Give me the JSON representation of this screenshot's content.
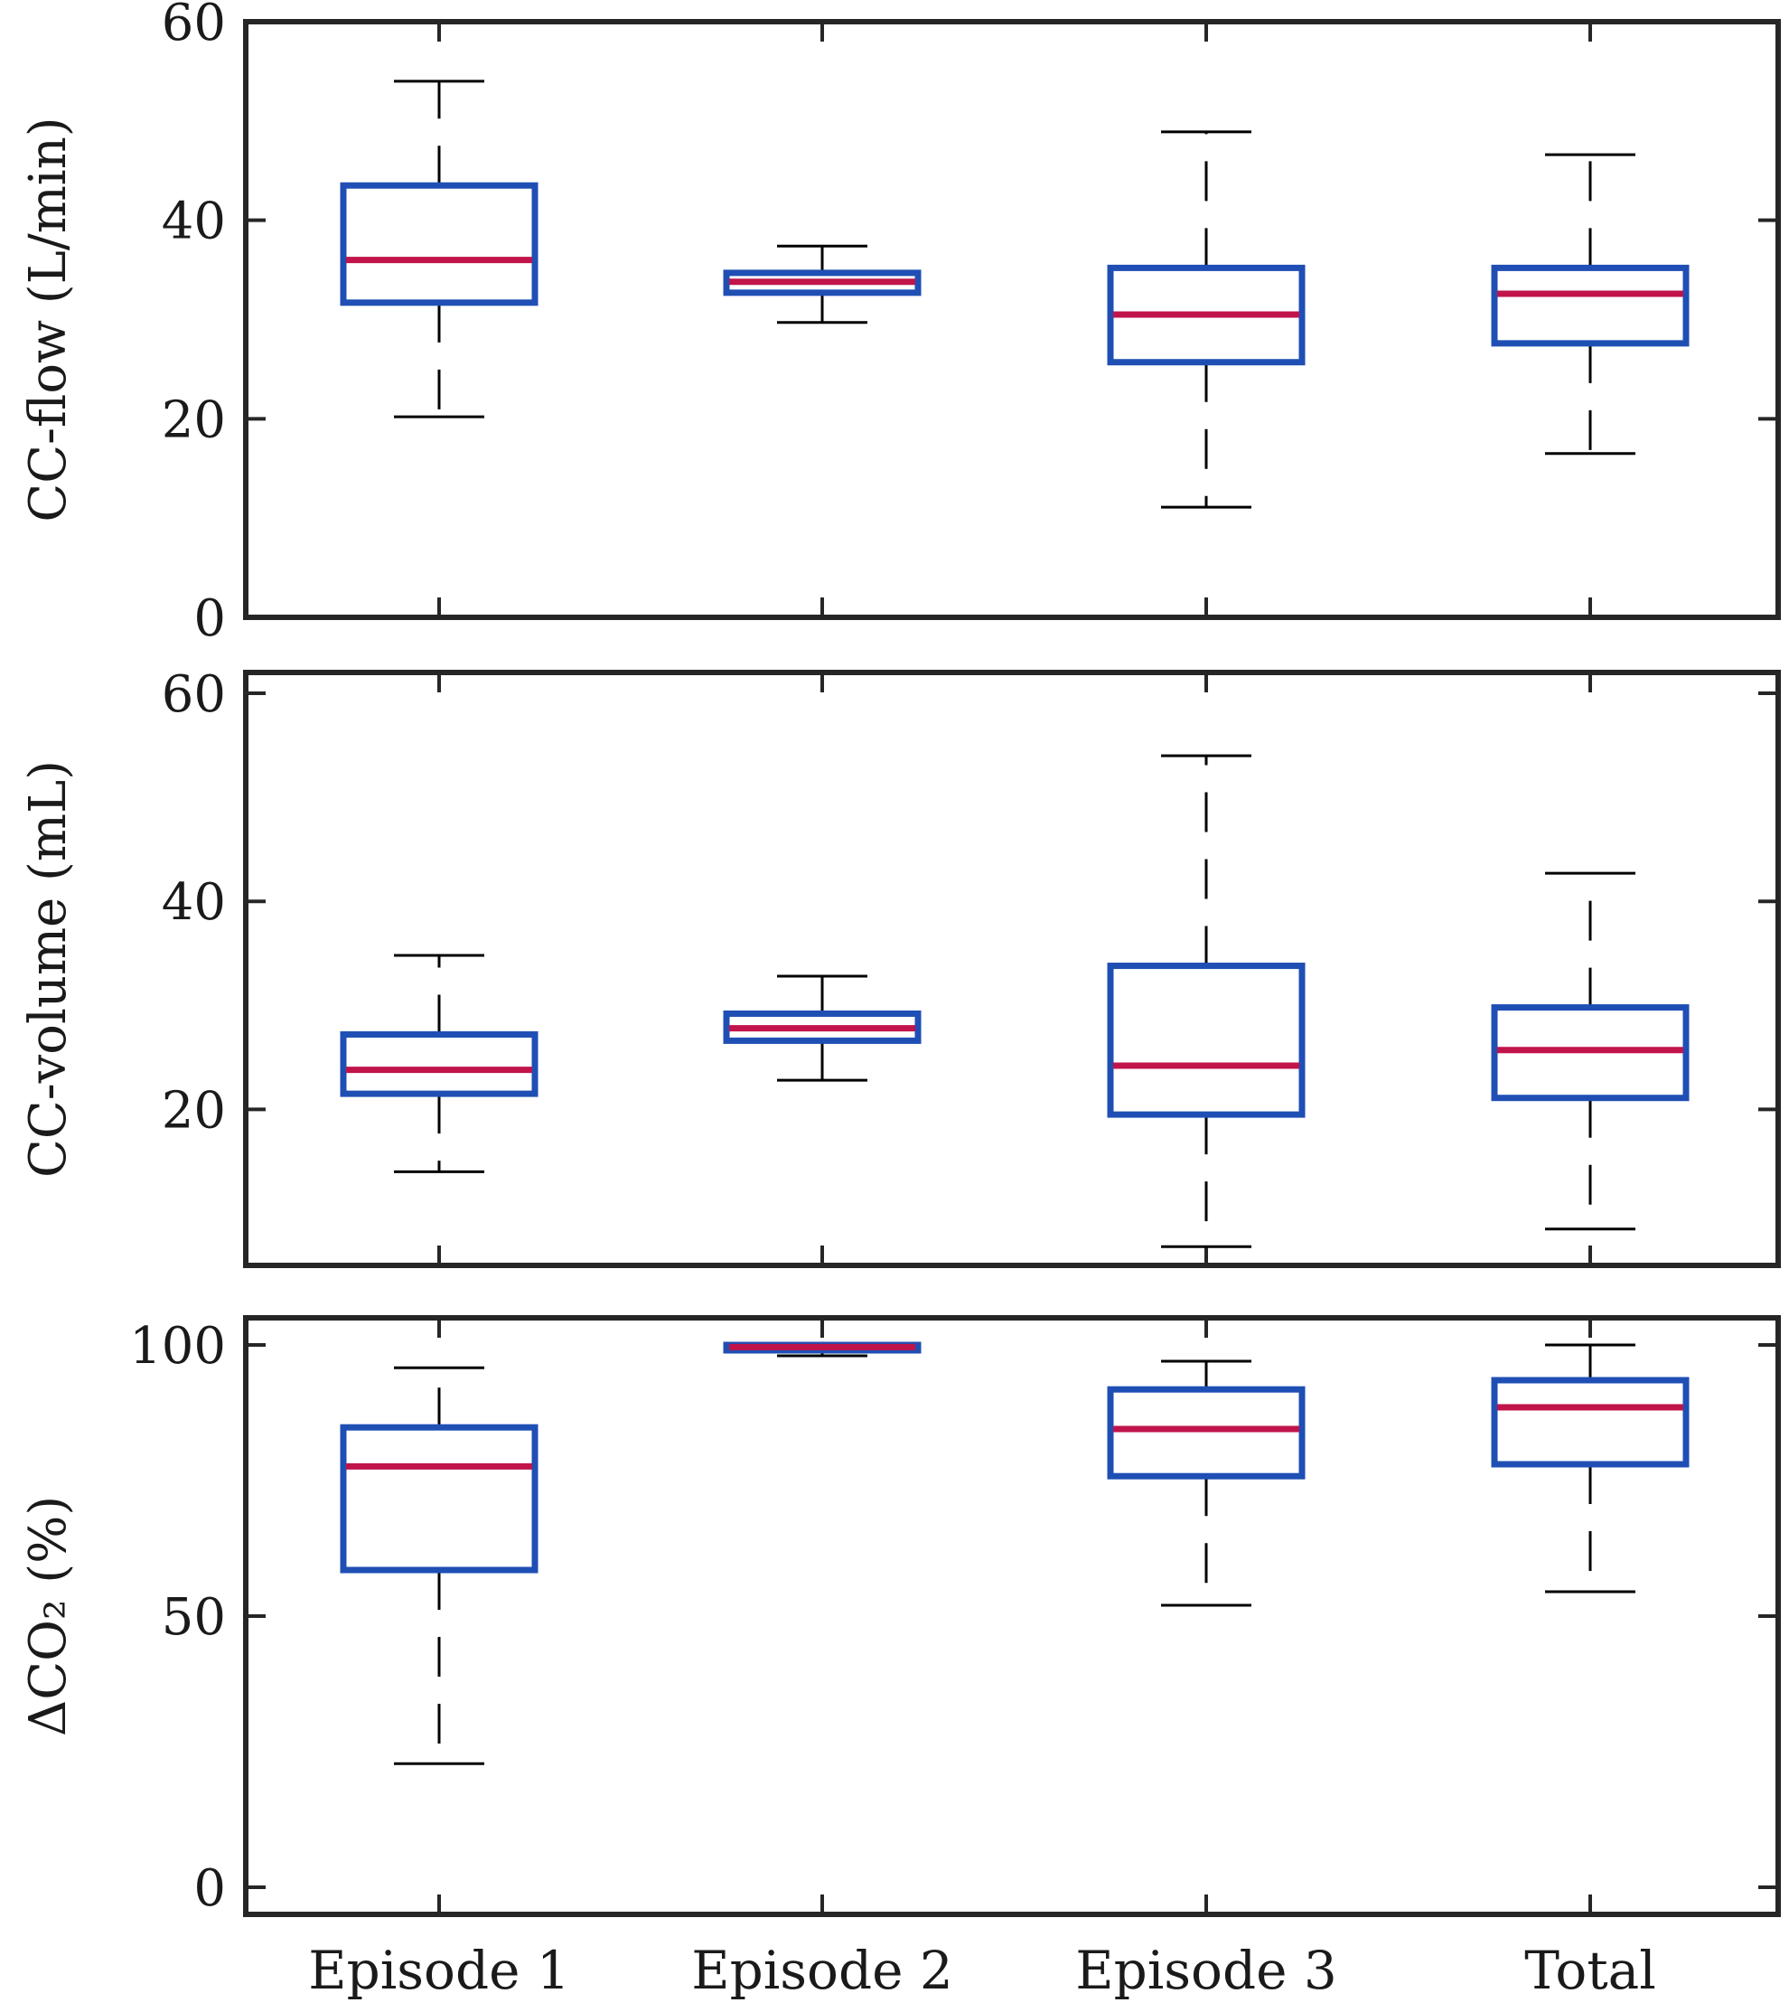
{
  "colors": {
    "box": "#1f4fb4",
    "median": "#c0144a"
  },
  "chart_data": [
    {
      "type": "box",
      "ylabel": "CC-flow (L/min)",
      "ylim": [
        0,
        60
      ],
      "yticks": [
        0,
        20,
        40,
        60
      ],
      "categories": [
        "Episode 1",
        "Episode 2",
        "Episode 3",
        "Total"
      ],
      "boxes": [
        {
          "min": 20.2,
          "q1": 31.7,
          "median": 36.0,
          "q3": 43.5,
          "max": 54.0
        },
        {
          "min": 29.7,
          "q1": 32.7,
          "median": 33.8,
          "q3": 34.7,
          "max": 37.4
        },
        {
          "min": 11.1,
          "q1": 25.7,
          "median": 30.5,
          "q3": 35.2,
          "max": 48.9
        },
        {
          "min": 16.5,
          "q1": 27.6,
          "median": 32.6,
          "q3": 35.2,
          "max": 46.6
        }
      ]
    },
    {
      "type": "box",
      "ylabel": "CC-volume (mL)",
      "ylim": [
        5,
        62
      ],
      "yticks": [
        20,
        40,
        60
      ],
      "categories": [
        "Episode 1",
        "Episode 2",
        "Episode 3",
        "Total"
      ],
      "boxes": [
        {
          "min": 14.0,
          "q1": 21.5,
          "median": 23.8,
          "q3": 27.2,
          "max": 34.8
        },
        {
          "min": 22.8,
          "q1": 26.6,
          "median": 27.8,
          "q3": 29.2,
          "max": 32.8
        },
        {
          "min": 6.8,
          "q1": 19.5,
          "median": 24.2,
          "q3": 33.8,
          "max": 54.0
        },
        {
          "min": 8.5,
          "q1": 21.1,
          "median": 25.7,
          "q3": 29.8,
          "max": 42.7
        }
      ]
    },
    {
      "type": "box",
      "ylabel": "ΔCO₂ (%)",
      "ylim": [
        -5,
        105
      ],
      "yticks": [
        0,
        50,
        100
      ],
      "categories": [
        "Episode 1",
        "Episode 2",
        "Episode 3",
        "Total"
      ],
      "boxes": [
        {
          "min": 22.8,
          "q1": 58.5,
          "median": 77.6,
          "q3": 84.8,
          "max": 95.8
        },
        {
          "min": 98.0,
          "q1": 99.0,
          "median": 99.6,
          "q3": 100.0,
          "max": 100.0
        },
        {
          "min": 52.0,
          "q1": 75.8,
          "median": 84.5,
          "q3": 91.8,
          "max": 97.0
        },
        {
          "min": 54.5,
          "q1": 78.0,
          "median": 88.5,
          "q3": 93.5,
          "max": 100.0
        }
      ]
    }
  ]
}
